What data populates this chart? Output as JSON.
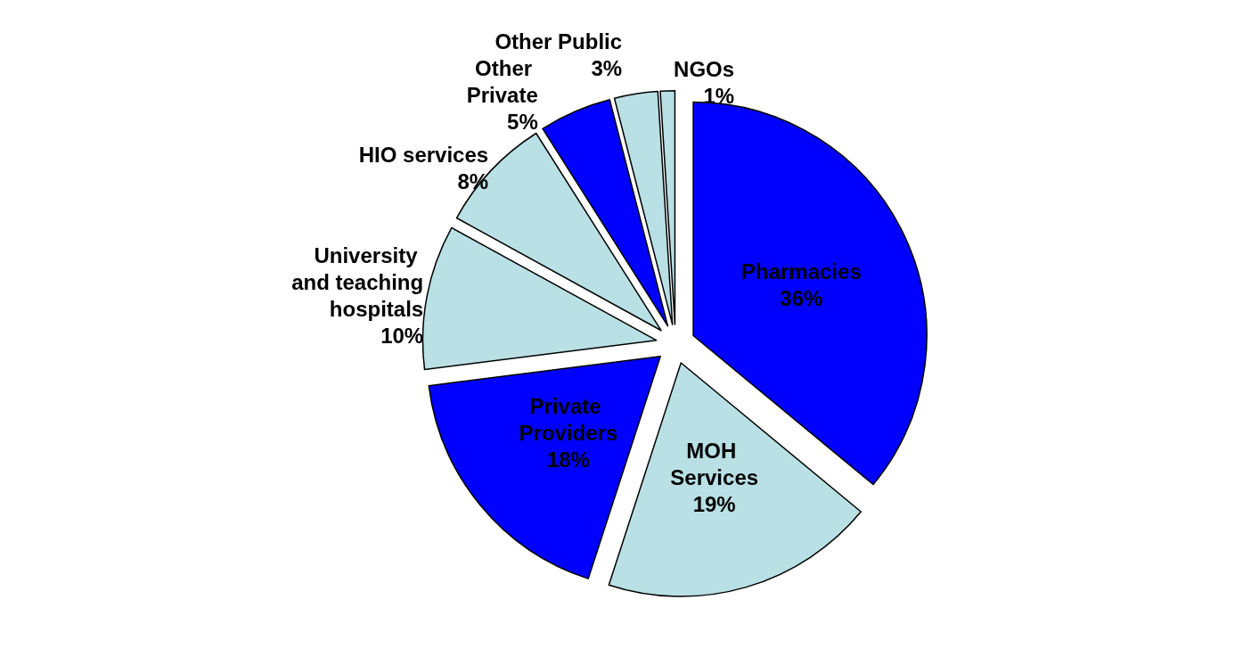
{
  "chart_data": {
    "type": "pie",
    "categories": [
      "Pharmacies",
      "MOH Services",
      "Private Providers",
      "University and teaching hospitals",
      "HIO services",
      "Other Private",
      "Other Public",
      "NGOs"
    ],
    "values": [
      36,
      19,
      18,
      10,
      8,
      5,
      3,
      1
    ],
    "value_labels": [
      "36%",
      "19%",
      "18%",
      "10%",
      "8%",
      "5%",
      "3%",
      "1%"
    ],
    "colors": [
      "#0000ff",
      "#b9e0e4",
      "#0000ff",
      "#b9e0e4",
      "#b9e0e4",
      "#0000ff",
      "#b9e0e4",
      "#b9e0e4"
    ]
  }
}
